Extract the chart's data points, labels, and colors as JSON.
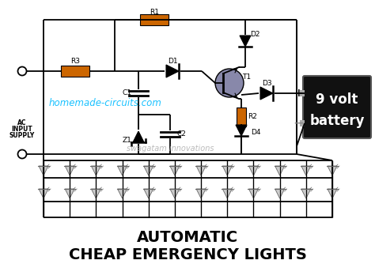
{
  "title_line1": "AUTOMATIC",
  "title_line2": "CHEAP EMERGENCY LIGHTS",
  "battery_text_line1": "9 volt",
  "battery_text_line2": "battery",
  "watermark1": "homemade-circuits.com",
  "watermark2": "swagatam innovations",
  "bg_color": "#ffffff",
  "wire_color": "#000000",
  "resistor_color": "#cc6600",
  "transistor_fill": "#8888aa",
  "battery_bg": "#111111",
  "battery_text_color": "#ffffff",
  "watermark_color": "#00bbff",
  "watermark2_color": "#aaaaaa",
  "title_color": "#000000",
  "fig_w": 4.74,
  "fig_h": 3.53,
  "dpi": 100
}
